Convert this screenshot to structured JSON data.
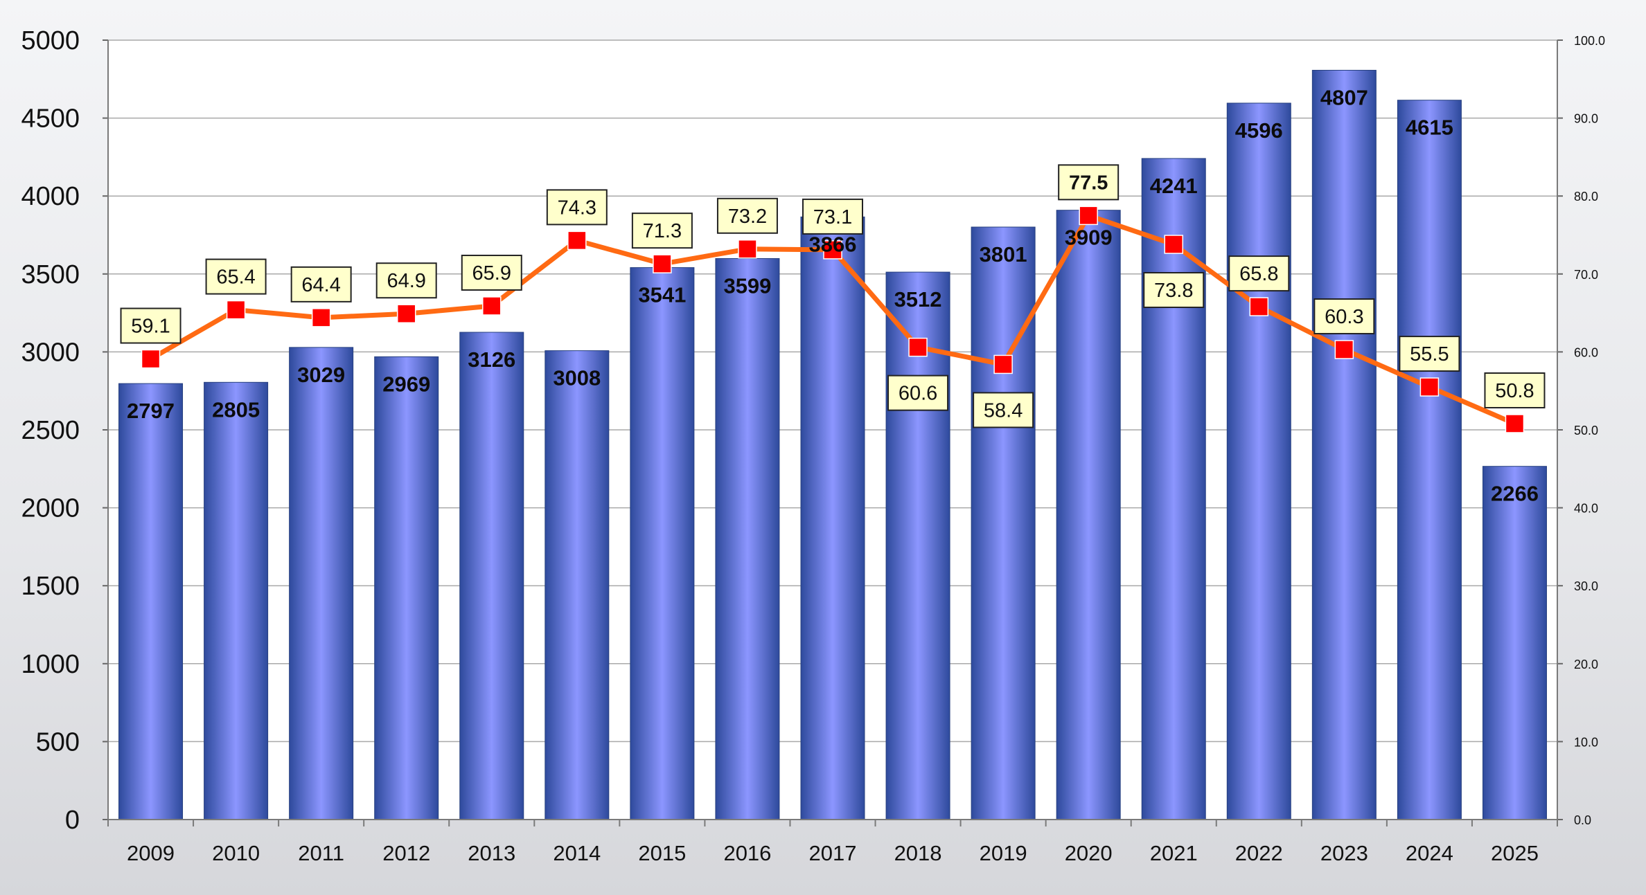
{
  "chart_data": {
    "type": "bar",
    "categories": [
      "2009",
      "2010",
      "2011",
      "2012",
      "2013",
      "2014",
      "2015",
      "2016",
      "2017",
      "2018",
      "2019",
      "2020",
      "2021",
      "2022",
      "2023",
      "2024",
      "2025"
    ],
    "series": [
      {
        "type": "bar",
        "axis": "left",
        "values": [
          2797,
          2805,
          3029,
          2969,
          3126,
          3008,
          3541,
          3599,
          3866,
          3512,
          3801,
          3909,
          4241,
          4596,
          4807,
          4615,
          2266
        ],
        "labels": [
          "2797",
          "2805",
          "3029",
          "2969",
          "3126",
          "3008",
          "3541",
          "3599",
          "3866",
          "3512",
          "3801",
          "3909",
          "4241",
          "4596",
          "4807",
          "4615",
          "2266"
        ],
        "color": "#3a55a8"
      },
      {
        "type": "line",
        "axis": "right",
        "values": [
          59.1,
          65.4,
          64.4,
          64.9,
          65.9,
          74.3,
          71.3,
          73.2,
          73.1,
          60.6,
          58.4,
          77.5,
          73.8,
          65.8,
          60.3,
          55.5,
          50.8
        ],
        "labels": [
          "59.1",
          "65.4",
          "64.4",
          "64.9",
          "65.9",
          "74.3",
          "71.3",
          "73.2",
          "73.1",
          "60.6",
          "58.4",
          "77.5",
          "73.8",
          "65.8",
          "60.3",
          "55.5",
          "50.8"
        ],
        "label_pos": [
          "above",
          "above",
          "above",
          "above",
          "above",
          "above",
          "above",
          "above",
          "above",
          "below",
          "below",
          "above",
          "below",
          "above",
          "above",
          "above",
          "above"
        ],
        "line_color": "#ff6a13",
        "marker_color": "#ff0000"
      }
    ],
    "y_left": {
      "min": 0,
      "max": 5000,
      "step": 500,
      "ticks": [
        "0",
        "500",
        "1000",
        "1500",
        "2000",
        "2500",
        "3000",
        "3500",
        "4000",
        "4500",
        "5000"
      ]
    },
    "y_right": {
      "min": 0,
      "max": 100,
      "step": 10,
      "ticks": [
        "0.0",
        "10.0",
        "20.0",
        "30.0",
        "40.0",
        "50.0",
        "60.0",
        "70.0",
        "80.0",
        "90.0",
        "100.0"
      ]
    },
    "grid": true,
    "legend": "none"
  }
}
